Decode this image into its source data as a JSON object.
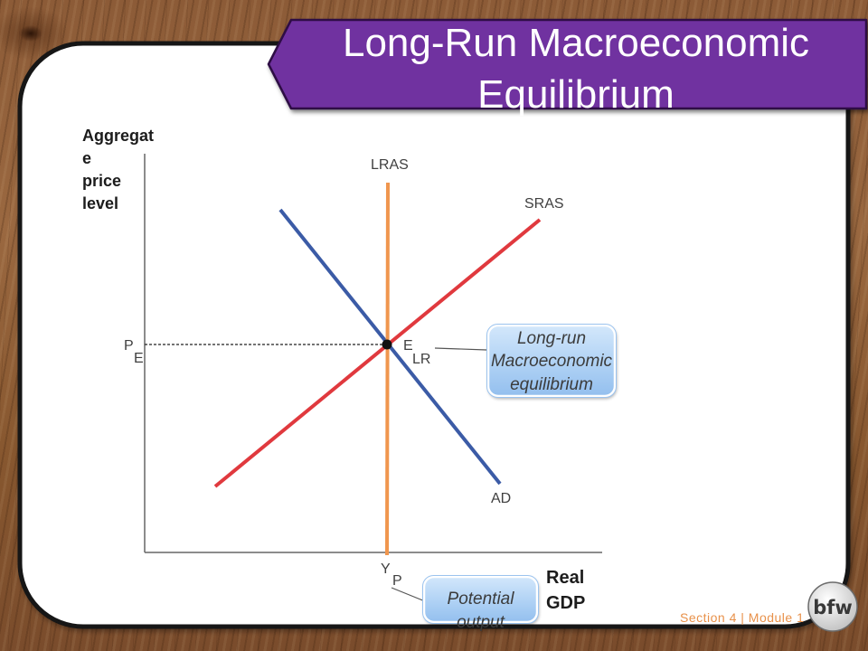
{
  "slide": {
    "title_lines": [
      "Long-Run Macroeconomic",
      "Equilibrium"
    ],
    "footer": "Section 4 | Module 1",
    "logo_text": "bfw"
  },
  "diagram": {
    "y_axis_label_lines": [
      "Aggregat",
      "e",
      "price",
      "level"
    ],
    "x_axis_label_lines": [
      "Real",
      "GDP"
    ],
    "curves": {
      "lras": {
        "label": "LRAS",
        "color": "#f0964e"
      },
      "sras": {
        "label": "SRAS",
        "color": "#e0393e"
      },
      "ad": {
        "label": "AD",
        "color": "#3b5ba6"
      }
    },
    "price_level_label": {
      "main": "P",
      "sub": "E"
    },
    "equilibrium_point_label": {
      "main": "E",
      "sub": "LR"
    },
    "output_label": {
      "main": "Y",
      "sub": "P"
    },
    "callouts": {
      "long_run_equilibrium": [
        "Long-run",
        "Macroeconomic",
        "equilibrium"
      ],
      "potential_output": [
        "Potential",
        "output"
      ]
    }
  },
  "colors": {
    "title_banner": "#7030a0",
    "footer_text": "#e8914a",
    "axis": "#666666",
    "equilibrium_dot": "#111111",
    "guide_line": "#222222"
  }
}
